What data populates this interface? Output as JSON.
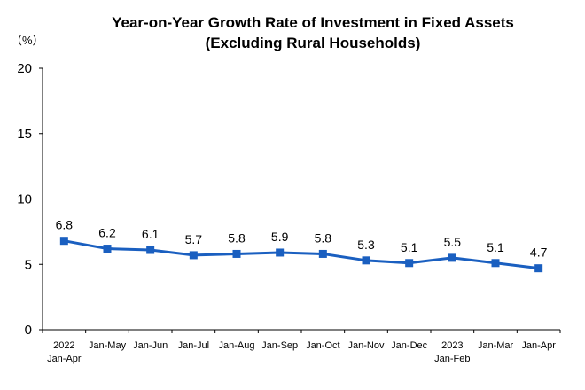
{
  "chart_data": {
    "type": "line",
    "title_line1": "Year-on-Year Growth Rate of Investment in Fixed Assets",
    "title_line2": "(Excluding Rural Households)",
    "unit_label": "（%）",
    "ylim": [
      0,
      20
    ],
    "yticks": [
      "0",
      "5",
      "10",
      "15",
      "20"
    ],
    "grid": false,
    "legend": "none",
    "categories": [
      [
        "2022",
        "Jan-Apr"
      ],
      [
        "Jan-May"
      ],
      [
        "Jan-Jun"
      ],
      [
        "Jan-Jul"
      ],
      [
        "Jan-Aug"
      ],
      [
        "Jan-Sep"
      ],
      [
        "Jan-Oct"
      ],
      [
        "Jan-Nov"
      ],
      [
        "Jan-Dec"
      ],
      [
        "2023",
        "Jan-Feb"
      ],
      [
        "Jan-Mar"
      ],
      [
        "Jan-Apr"
      ]
    ],
    "series": [
      {
        "values": [
          6.8,
          6.2,
          6.1,
          5.7,
          5.8,
          5.9,
          5.8,
          5.3,
          5.1,
          5.5,
          5.1,
          4.7
        ],
        "labels": [
          "6.8",
          "6.2",
          "6.1",
          "5.7",
          "5.8",
          "5.9",
          "5.8",
          "5.3",
          "5.1",
          "5.5",
          "5.1",
          "4.7"
        ],
        "color": "#1a5fc0"
      }
    ]
  }
}
